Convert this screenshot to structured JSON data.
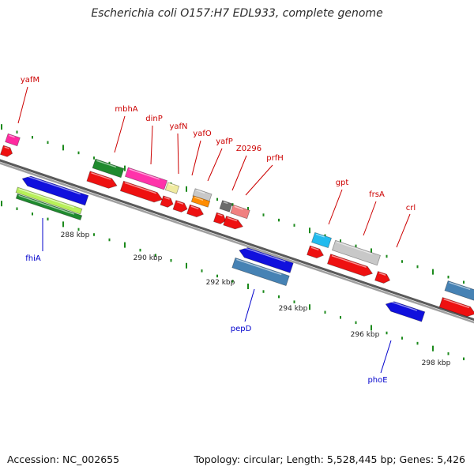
{
  "title": "Escherichia coli O157:H7 EDL933, complete genome",
  "footer": {
    "accession": "Accession: NC_002655",
    "summary": "Topology: circular; Length: 5,528,445 bp; Genes: 5,426"
  },
  "colors": {
    "backbone": "#8c8c8c",
    "tick": "#1c8a1c",
    "label_top": "#cc0000",
    "label_bottom": "#0000cc"
  },
  "scale_labels": [
    "288 kbp",
    "290 kbp",
    "292 kbp",
    "294 kbp",
    "296 kbp",
    "298 kbp"
  ],
  "genes": [
    {
      "name": "yafM",
      "color": "#cc0000"
    },
    {
      "name": "mbhA",
      "color": "#cc0000"
    },
    {
      "name": "dinP",
      "color": "#cc0000"
    },
    {
      "name": "yafN",
      "color": "#cc0000"
    },
    {
      "name": "yafO",
      "color": "#cc0000"
    },
    {
      "name": "yafP",
      "color": "#cc0000"
    },
    {
      "name": "Z0296",
      "color": "#cc0000"
    },
    {
      "name": "prfH",
      "color": "#cc0000"
    },
    {
      "name": "gpt",
      "color": "#cc0000"
    },
    {
      "name": "frsA",
      "color": "#cc0000"
    },
    {
      "name": "crl",
      "color": "#cc0000"
    },
    {
      "name": "fhiA",
      "color": "#0000cc"
    },
    {
      "name": "pepD",
      "color": "#0000cc"
    },
    {
      "name": "phoE",
      "color": "#0000cc"
    }
  ]
}
